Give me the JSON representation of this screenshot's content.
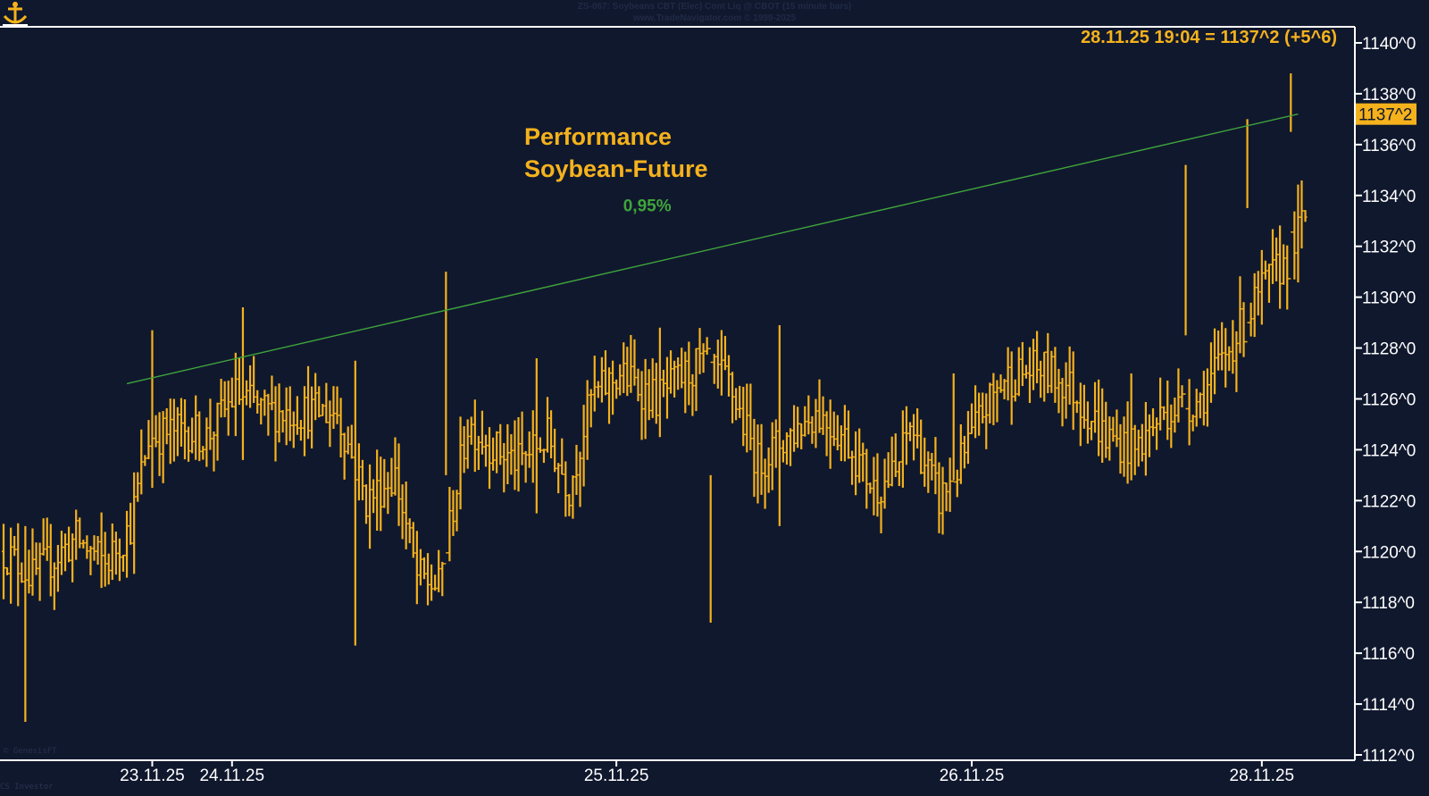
{
  "header": {
    "title": "ZS-067: Soybeans CBT (Elec) Cont Liq @ CBOT (15 minute bars)",
    "subtitle": "www.TradeNavigator.com © 1999-2025"
  },
  "footer": {
    "watermark": "© GenesisFT",
    "credit": "CS Investor"
  },
  "colors": {
    "background": "#10182e",
    "bars": "#f5b21c",
    "trendline": "#3fa53a",
    "axis": "#ffffff",
    "label_text": "#ffffff",
    "highlight": "#f5b21c"
  },
  "chart_data": {
    "type": "ohlc",
    "title": "Performance\nSoybean-Future",
    "title_lines": [
      "Performance",
      "Soybean-Future"
    ],
    "xlabel": "",
    "ylabel": "",
    "ylim": [
      1112,
      1140.6
    ],
    "y_ticks": [
      "1112^0",
      "1114^0",
      "1116^0",
      "1118^0",
      "1120^0",
      "1122^0",
      "1124^0",
      "1126^0",
      "1128^0",
      "1130^0",
      "1132^0",
      "1134^0",
      "1136^0",
      "1138^0",
      "1140^0"
    ],
    "y_tick_values": [
      1112,
      1114,
      1116,
      1118,
      1120,
      1122,
      1124,
      1126,
      1128,
      1130,
      1132,
      1134,
      1136,
      1138,
      1140
    ],
    "x_labels": [
      {
        "label": "23.11.25",
        "bar_index": 41
      },
      {
        "label": "24.11.25",
        "bar_index": 63
      },
      {
        "label": "25.11.25",
        "bar_index": 169
      },
      {
        "label": "26.11.25",
        "bar_index": 267
      },
      {
        "label": "28.11.25",
        "bar_index": 347
      }
    ],
    "last_price": "1137^2",
    "last_value": 1137.2,
    "readout": "28.11.25 19:04 = 1137^2 (+5^6)",
    "grid": false,
    "bar_count": 360,
    "anchors": [
      {
        "i": 0,
        "v": 1120.0
      },
      {
        "i": 8,
        "v": 1119.0
      },
      {
        "i": 16,
        "v": 1120.0
      },
      {
        "i": 20,
        "v": 1120.5
      },
      {
        "i": 28,
        "v": 1119.5
      },
      {
        "i": 35,
        "v": 1121.0
      },
      {
        "i": 40,
        "v": 1124.5
      },
      {
        "i": 50,
        "v": 1124.8
      },
      {
        "i": 56,
        "v": 1124.5
      },
      {
        "i": 64,
        "v": 1126.2
      },
      {
        "i": 72,
        "v": 1125.5
      },
      {
        "i": 82,
        "v": 1125.5
      },
      {
        "i": 92,
        "v": 1125.5
      },
      {
        "i": 100,
        "v": 1122.0
      },
      {
        "i": 108,
        "v": 1123.0
      },
      {
        "i": 114,
        "v": 1119.0
      },
      {
        "i": 120,
        "v": 1118.6
      },
      {
        "i": 128,
        "v": 1125.0
      },
      {
        "i": 136,
        "v": 1124.0
      },
      {
        "i": 142,
        "v": 1123.5
      },
      {
        "i": 150,
        "v": 1124.5
      },
      {
        "i": 156,
        "v": 1122.5
      },
      {
        "i": 162,
        "v": 1126.0
      },
      {
        "i": 170,
        "v": 1127.0
      },
      {
        "i": 180,
        "v": 1126.0
      },
      {
        "i": 192,
        "v": 1127.4
      },
      {
        "i": 200,
        "v": 1126.6
      },
      {
        "i": 208,
        "v": 1123.5
      },
      {
        "i": 216,
        "v": 1124.5
      },
      {
        "i": 224,
        "v": 1125.5
      },
      {
        "i": 232,
        "v": 1124.5
      },
      {
        "i": 240,
        "v": 1122.5
      },
      {
        "i": 246,
        "v": 1123.0
      },
      {
        "i": 250,
        "v": 1125.0
      },
      {
        "i": 258,
        "v": 1122.0
      },
      {
        "i": 264,
        "v": 1123.5
      },
      {
        "i": 270,
        "v": 1125.5
      },
      {
        "i": 276,
        "v": 1126.8
      },
      {
        "i": 286,
        "v": 1127.2
      },
      {
        "i": 294,
        "v": 1126.5
      },
      {
        "i": 304,
        "v": 1124.5
      },
      {
        "i": 312,
        "v": 1124.0
      },
      {
        "i": 320,
        "v": 1125.5
      },
      {
        "i": 330,
        "v": 1126.0
      },
      {
        "i": 338,
        "v": 1128.0
      },
      {
        "i": 348,
        "v": 1130.5
      },
      {
        "i": 354,
        "v": 1131.5
      },
      {
        "i": 360,
        "v": 1133.5
      }
    ],
    "spikes": [
      {
        "i": 6,
        "low": 1113.3,
        "high": 1121.0
      },
      {
        "i": 41,
        "low": 1122.5,
        "high": 1128.7
      },
      {
        "i": 66,
        "low": 1123.6,
        "high": 1129.6
      },
      {
        "i": 97,
        "low": 1116.3,
        "high": 1127.5
      },
      {
        "i": 122,
        "low": 1123.0,
        "high": 1131.0
      },
      {
        "i": 147,
        "low": 1121.5,
        "high": 1127.6
      },
      {
        "i": 181,
        "low": 1124.5,
        "high": 1128.8
      },
      {
        "i": 195,
        "low": 1117.2,
        "high": 1123.0
      },
      {
        "i": 214,
        "low": 1121.0,
        "high": 1128.9
      },
      {
        "i": 262,
        "low": 1122.8,
        "high": 1127.0
      },
      {
        "i": 311,
        "low": 1122.8,
        "high": 1127.0
      },
      {
        "i": 326,
        "low": 1128.5,
        "high": 1135.2
      },
      {
        "i": 343,
        "low": 1133.5,
        "high": 1137.0
      },
      {
        "i": 355,
        "low": 1136.5,
        "high": 1138.8
      }
    ],
    "trendline": {
      "label": "0,95%",
      "start": {
        "bar_index": 34,
        "value": 1126.6
      },
      "end": {
        "bar_index": 357,
        "value": 1137.2
      }
    }
  }
}
